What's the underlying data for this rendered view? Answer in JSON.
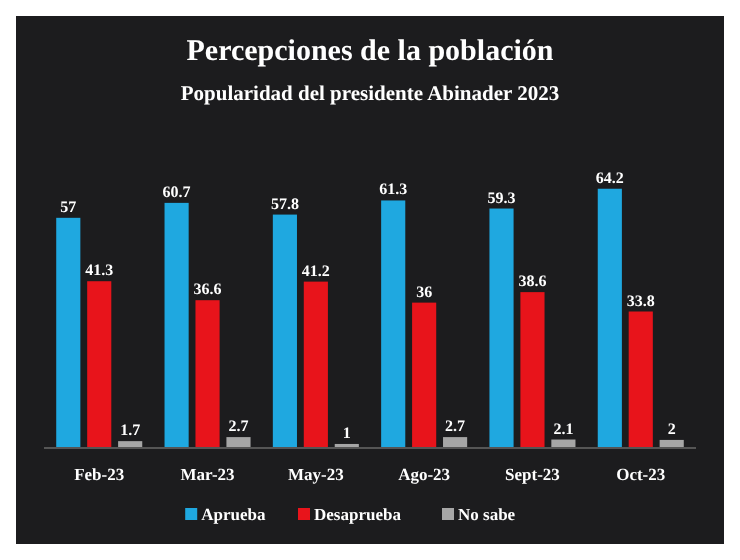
{
  "chart_data": {
    "type": "bar",
    "title": "Percepciones de la población",
    "subtitle": "Popularidad del presidente Abinader 2023",
    "categories": [
      "Feb-23",
      "Mar-23",
      "May-23",
      "Ago-23",
      "Sept-23",
      "Oct-23"
    ],
    "series": [
      {
        "name": "Aprueba",
        "color": "#1fa8e0",
        "values": [
          57,
          60.7,
          57.8,
          61.3,
          59.3,
          64.2
        ]
      },
      {
        "name": "Desaprueba",
        "color": "#e8141b",
        "values": [
          41.3,
          36.6,
          41.2,
          36,
          38.6,
          33.8
        ]
      },
      {
        "name": "No sabe",
        "color": "#a6a6a6",
        "values": [
          1.7,
          2.7,
          1,
          2.7,
          2.1,
          2
        ]
      }
    ],
    "data_labels": true,
    "legend": "bottom"
  }
}
